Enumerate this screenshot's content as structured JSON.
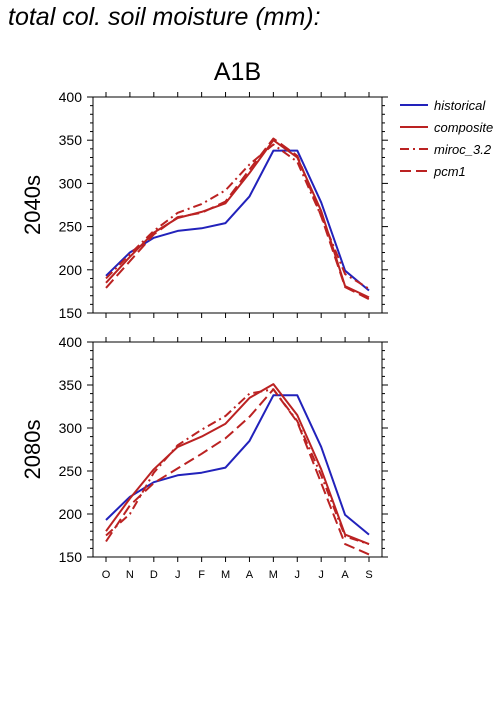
{
  "page_title": "total col. soil moisture (mm):",
  "colors": {
    "historical": "#2222bb",
    "scenario": "#bb2222",
    "axis": "#000000"
  },
  "chart_data": [
    {
      "type": "line",
      "title": "A1B",
      "ylabel": "2040s",
      "xlabel": "",
      "categories": [
        "O",
        "N",
        "D",
        "J",
        "F",
        "M",
        "A",
        "M",
        "J",
        "J",
        "A",
        "S"
      ],
      "ylim": [
        150,
        400
      ],
      "yticks": [
        150,
        200,
        250,
        300,
        350,
        400
      ],
      "grid": false,
      "legend": "right-outside",
      "series": [
        {
          "name": "historical",
          "style": "solid",
          "values": [
            193,
            220,
            237,
            245,
            248,
            254,
            285,
            338,
            338,
            278,
            199,
            176
          ]
        },
        {
          "name": "composite",
          "style": "solid",
          "values": [
            185,
            215,
            243,
            260,
            267,
            277,
            312,
            350,
            330,
            268,
            181,
            168
          ]
        },
        {
          "name": "miroc_3.2",
          "style": "dashdot",
          "values": [
            190,
            218,
            245,
            266,
            276,
            292,
            322,
            345,
            325,
            262,
            195,
            178
          ]
        },
        {
          "name": "pcm1",
          "style": "dashed",
          "values": [
            179,
            210,
            241,
            261,
            266,
            279,
            316,
            352,
            332,
            262,
            180,
            166
          ]
        }
      ]
    },
    {
      "type": "line",
      "title": "",
      "ylabel": "2080s",
      "xlabel": "",
      "categories": [
        "O",
        "N",
        "D",
        "J",
        "F",
        "M",
        "A",
        "M",
        "J",
        "J",
        "A",
        "S"
      ],
      "ylim": [
        150,
        400
      ],
      "yticks": [
        150,
        200,
        250,
        300,
        350,
        400
      ],
      "grid": false,
      "series": [
        {
          "name": "historical",
          "style": "solid",
          "values": [
            193,
            220,
            237,
            245,
            248,
            254,
            285,
            338,
            338,
            278,
            199,
            176
          ]
        },
        {
          "name": "composite",
          "style": "solid",
          "values": [
            180,
            218,
            252,
            278,
            290,
            305,
            335,
            351,
            315,
            252,
            176,
            165
          ]
        },
        {
          "name": "miroc_3.2",
          "style": "dashdot",
          "values": [
            175,
            200,
            248,
            280,
            298,
            314,
            340,
            345,
            308,
            245,
            174,
            165
          ]
        },
        {
          "name": "pcm1",
          "style": "dashed",
          "values": [
            168,
            210,
            236,
            253,
            270,
            288,
            313,
            345,
            307,
            236,
            165,
            153
          ]
        }
      ]
    }
  ]
}
